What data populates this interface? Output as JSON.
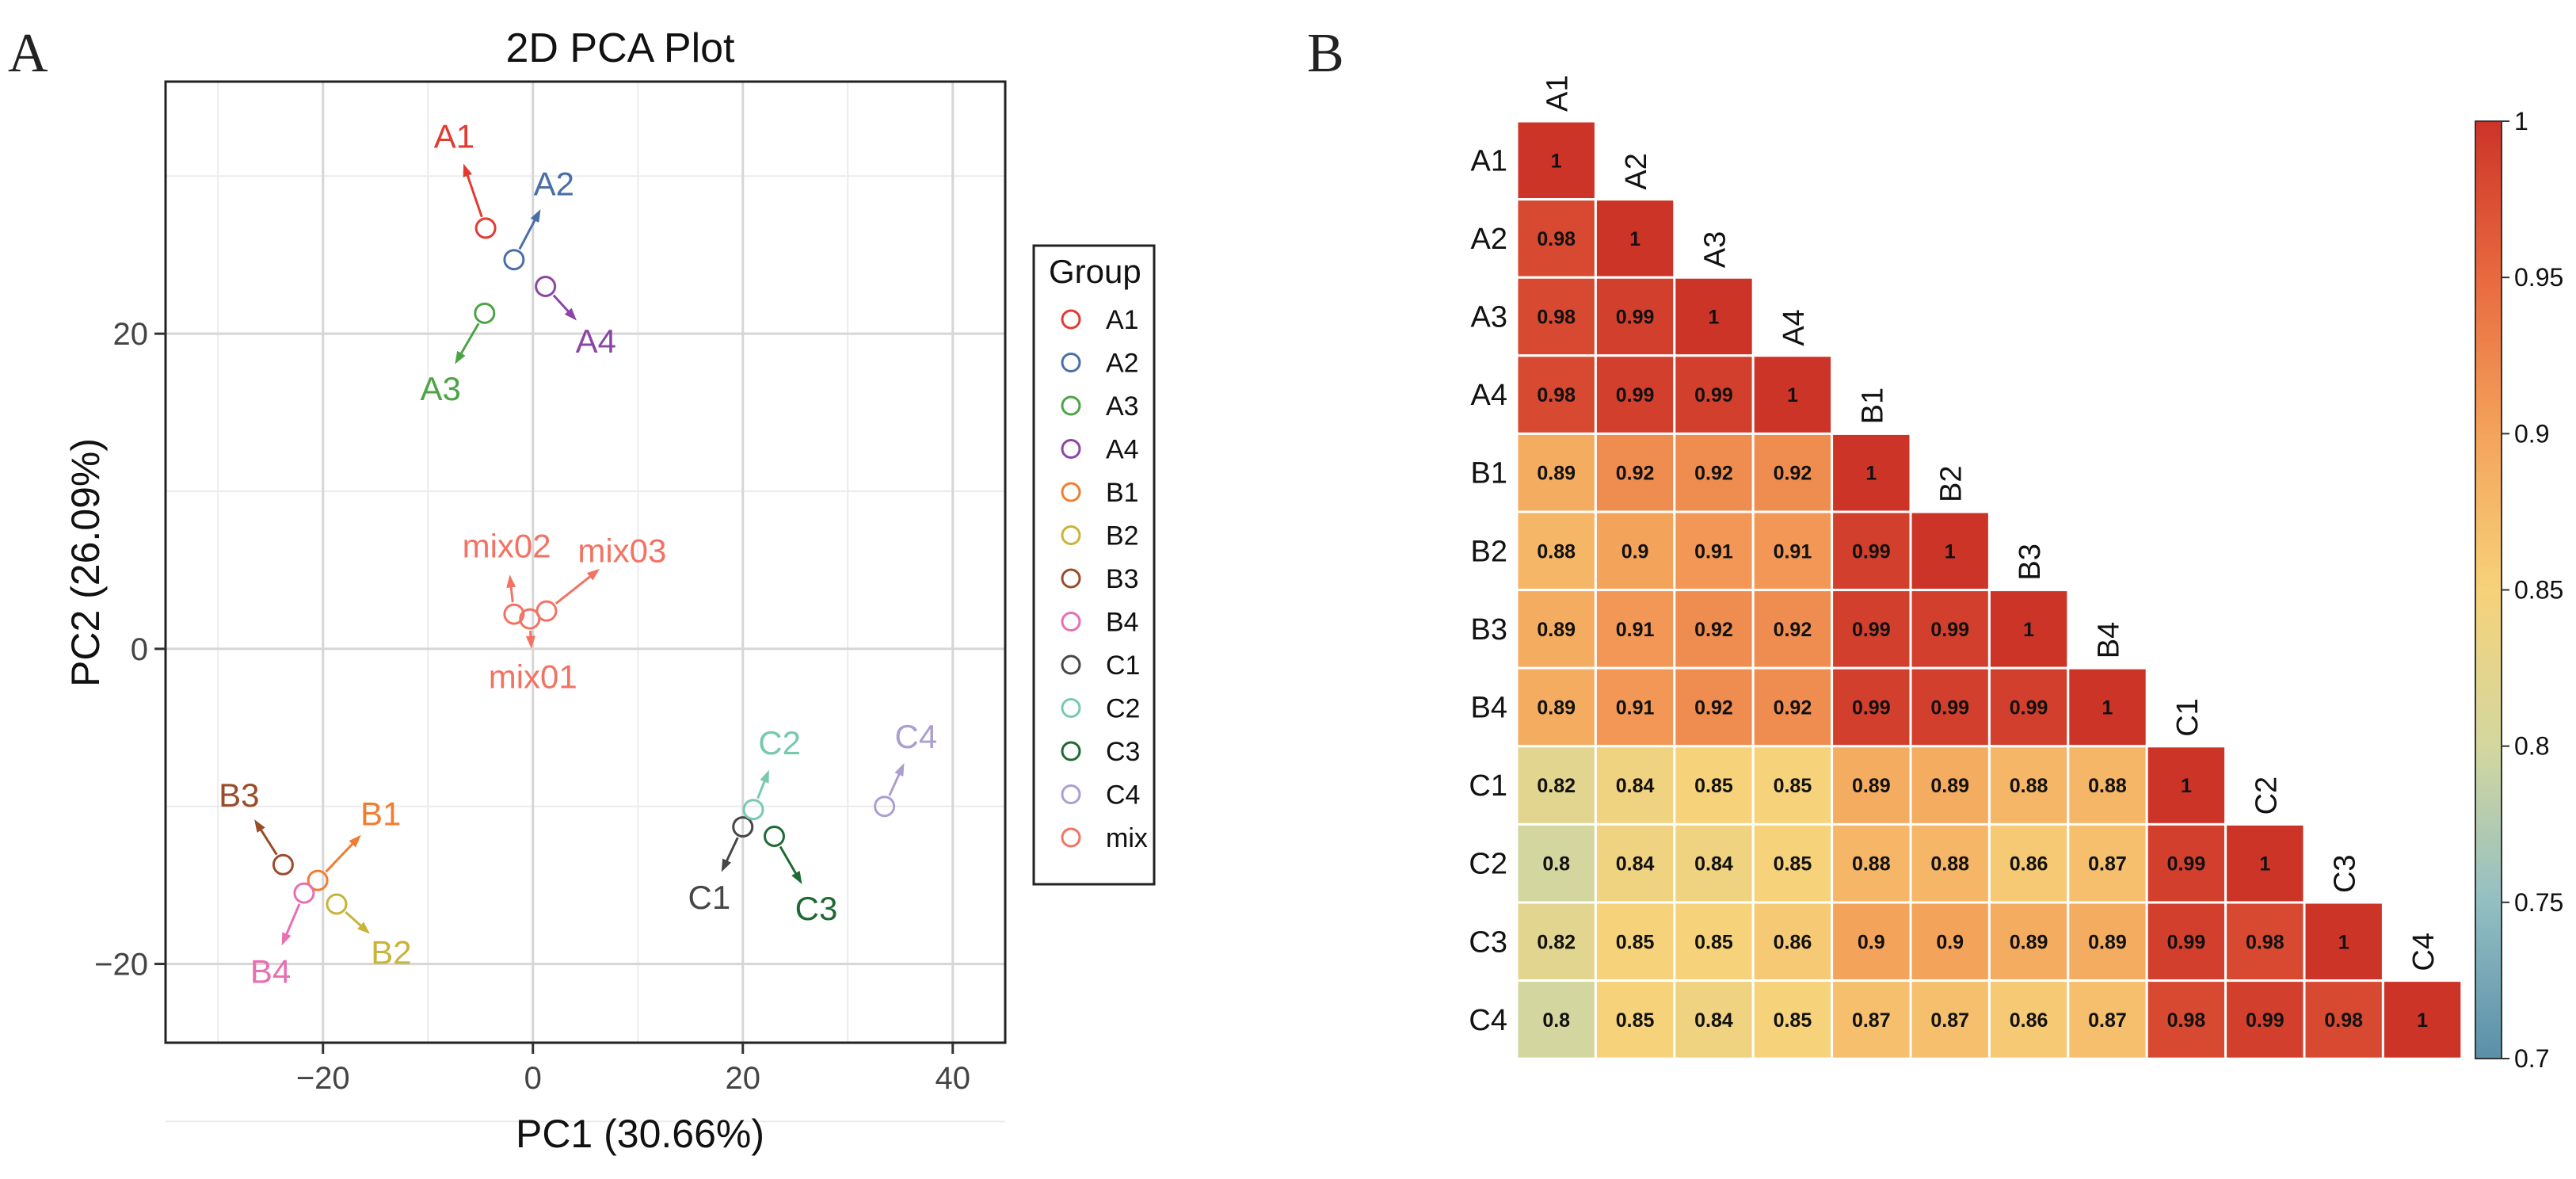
{
  "panels": {
    "left_letter": "A",
    "right_letter": "B"
  },
  "chart_data": [
    {
      "type": "scatter",
      "title": "2D PCA Plot",
      "xlabel": "PC1 (30.66%)",
      "ylabel": "PC2 (26.09%)",
      "xlim": [
        -35,
        45
      ],
      "ylim": [
        -25,
        36
      ],
      "xticks": [
        -20,
        0,
        20,
        40
      ],
      "yticks": [
        -20,
        0,
        20
      ],
      "grid": true,
      "legend": {
        "title": "Group",
        "position": "right",
        "items": [
          {
            "label": "A1",
            "color": "#e33a32"
          },
          {
            "label": "A2",
            "color": "#4a6fa8"
          },
          {
            "label": "A3",
            "color": "#4da446"
          },
          {
            "label": "A4",
            "color": "#8b46a5"
          },
          {
            "label": "B1",
            "color": "#f17d30"
          },
          {
            "label": "B2",
            "color": "#c9b43a"
          },
          {
            "label": "B3",
            "color": "#9a4c2a"
          },
          {
            "label": "B4",
            "color": "#e76fb2"
          },
          {
            "label": "C1",
            "color": "#474747"
          },
          {
            "label": "C2",
            "color": "#78c9af"
          },
          {
            "label": "C3",
            "color": "#1e6a32"
          },
          {
            "label": "C4",
            "color": "#ab9ed0"
          },
          {
            "label": "mix",
            "color": "#f27363"
          }
        ]
      },
      "points": [
        {
          "label": "A1",
          "x": -4.5,
          "y": 26.7,
          "lx": -7.5,
          "ly": 32.5,
          "color": "#e33a32"
        },
        {
          "label": "A2",
          "x": -1.8,
          "y": 24.7,
          "lx": 2.0,
          "ly": 29.5,
          "color": "#4a6fa8"
        },
        {
          "label": "A3",
          "x": -4.6,
          "y": 21.3,
          "lx": -8.8,
          "ly": 16.5,
          "color": "#4da446"
        },
        {
          "label": "A4",
          "x": 1.2,
          "y": 23.0,
          "lx": 6.0,
          "ly": 19.5,
          "color": "#8b46a5"
        },
        {
          "label": "B1",
          "x": -20.5,
          "y": -14.7,
          "lx": -14.5,
          "ly": -10.5,
          "color": "#f17d30"
        },
        {
          "label": "B2",
          "x": -18.7,
          "y": -16.2,
          "lx": -13.5,
          "ly": -19.3,
          "color": "#c9b43a"
        },
        {
          "label": "B3",
          "x": -23.8,
          "y": -13.7,
          "lx": -28.0,
          "ly": -9.3,
          "color": "#9a4c2a"
        },
        {
          "label": "B4",
          "x": -21.8,
          "y": -15.5,
          "lx": -25.0,
          "ly": -20.5,
          "color": "#e76fb2"
        },
        {
          "label": "C1",
          "x": 20.0,
          "y": -11.3,
          "lx": 16.8,
          "ly": -15.8,
          "color": "#474747"
        },
        {
          "label": "C2",
          "x": 21.0,
          "y": -10.2,
          "lx": 23.5,
          "ly": -6.0,
          "color": "#78c9af"
        },
        {
          "label": "C3",
          "x": 23.0,
          "y": -11.9,
          "lx": 27.0,
          "ly": -16.5,
          "color": "#1e6a32"
        },
        {
          "label": "C4",
          "x": 33.5,
          "y": -10.0,
          "lx": 36.5,
          "ly": -5.6,
          "color": "#ab9ed0"
        },
        {
          "label": "mix01",
          "x": -0.3,
          "y": 1.9,
          "lx": 0.0,
          "ly": -1.8,
          "color": "#f27363"
        },
        {
          "label": "mix02",
          "x": -1.8,
          "y": 2.2,
          "lx": -2.5,
          "ly": 6.5,
          "color": "#f27363"
        },
        {
          "label": "mix03",
          "x": 1.3,
          "y": 2.4,
          "lx": 8.5,
          "ly": 6.2,
          "color": "#f27363"
        }
      ]
    },
    {
      "type": "heatmap",
      "layout": "lower-triangle",
      "labels": [
        "A1",
        "A2",
        "A3",
        "A4",
        "B1",
        "B2",
        "B3",
        "B4",
        "C1",
        "C2",
        "C3",
        "C4"
      ],
      "values": [
        [
          1
        ],
        [
          0.98,
          1
        ],
        [
          0.98,
          0.99,
          1
        ],
        [
          0.98,
          0.99,
          0.99,
          1
        ],
        [
          0.89,
          0.92,
          0.92,
          0.92,
          1
        ],
        [
          0.88,
          0.9,
          0.91,
          0.91,
          0.99,
          1
        ],
        [
          0.89,
          0.91,
          0.92,
          0.92,
          0.99,
          0.99,
          1
        ],
        [
          0.89,
          0.91,
          0.92,
          0.92,
          0.99,
          0.99,
          0.99,
          1
        ],
        [
          0.82,
          0.84,
          0.85,
          0.85,
          0.89,
          0.89,
          0.88,
          0.88,
          1
        ],
        [
          0.8,
          0.84,
          0.84,
          0.85,
          0.88,
          0.88,
          0.86,
          0.87,
          0.99,
          1
        ],
        [
          0.82,
          0.85,
          0.85,
          0.86,
          0.9,
          0.9,
          0.89,
          0.89,
          0.99,
          0.98,
          1
        ],
        [
          0.8,
          0.85,
          0.84,
          0.85,
          0.87,
          0.87,
          0.86,
          0.87,
          0.98,
          0.99,
          0.98,
          1
        ]
      ],
      "colorbar": {
        "min": 0.7,
        "max": 1,
        "ticks": [
          0.7,
          0.75,
          0.8,
          0.85,
          0.9,
          0.95,
          1
        ],
        "tick_labels": [
          "0.7",
          "0.75",
          "0.8",
          "0.85",
          "0.9",
          "0.95",
          "1"
        ],
        "colors": [
          "#5a8fa9",
          "#93bfc2",
          "#d3d79f",
          "#f6d27a",
          "#f4a35b",
          "#e8693f",
          "#cc3428"
        ]
      }
    }
  ]
}
